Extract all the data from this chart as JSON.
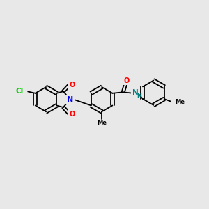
{
  "background_color": "#e8e8e8",
  "bond_color": "#000000",
  "cl_color": "#00cc00",
  "n_color": "#0000ee",
  "o_color": "#ff0000",
  "nh_color": "#008080",
  "figsize": [
    3.0,
    3.0
  ],
  "dpi": 100,
  "xlim": [
    0,
    10
  ],
  "ylim": [
    0,
    10
  ]
}
